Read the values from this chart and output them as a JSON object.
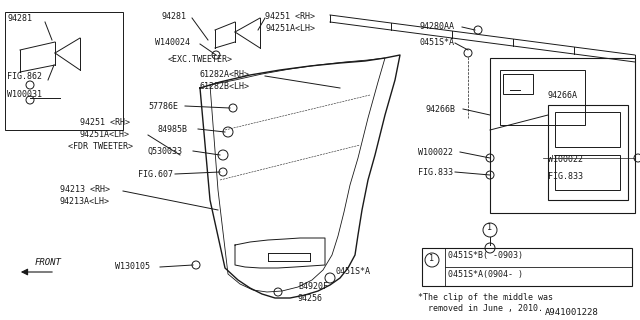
{
  "bg_color": "#ffffff",
  "line_color": "#1a1a1a",
  "diagram_id": "A941001228",
  "note_text": "*The clip of the middle was\n  removed in June , 2010.",
  "legend_lines": [
    "0451S*B( -0903)",
    "0451S*A(0904- )"
  ]
}
